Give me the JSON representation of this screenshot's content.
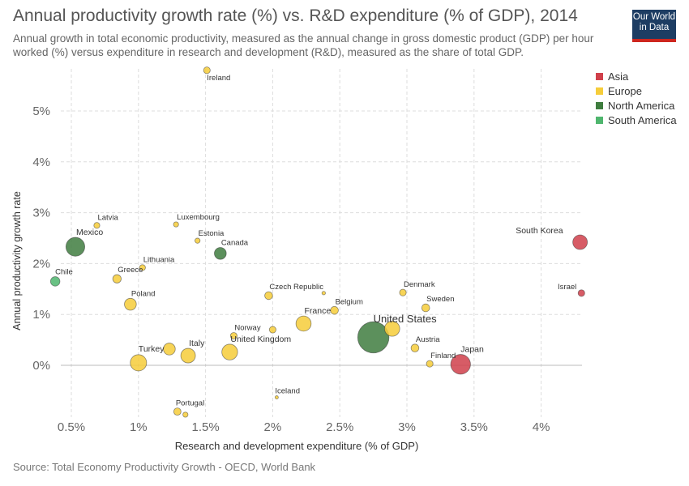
{
  "header": {
    "title": "Annual productivity growth rate (%) vs. R&D expenditure (% of GDP), 2014",
    "subtitle": "Annual growth in total economic productivity, measured as the annual change in gross domestic product (GDP) per hour worked (%) versus expenditure in research and development (R&D), measured as the share of total GDP.",
    "logo_line1": "Our World",
    "logo_line2": "in Data"
  },
  "footer": {
    "source": "Source: Total Economy Productivity Growth - OECD, World Bank"
  },
  "colors": {
    "Asia": "#d0404b",
    "Europe": "#f6cd3a",
    "North America": "#3f7d3f",
    "South America": "#4fb66e",
    "logo_bg": "#1d3d63",
    "logo_bar": "#ce261e"
  },
  "chart_data": {
    "type": "scatter",
    "title": "Annual productivity growth rate (%) vs. R&D expenditure (% of GDP), 2014",
    "xlabel": "Research and development expenditure (% of GDP)",
    "ylabel": "Annual productivity growth rate",
    "xlim": [
      0.25,
      4.3
    ],
    "ylim": [
      -1.0,
      5.85
    ],
    "x_ticks": [
      0.5,
      1,
      1.5,
      2,
      2.5,
      3,
      3.5,
      4
    ],
    "x_tick_labels": [
      "0.5%",
      "1%",
      "1.5%",
      "2%",
      "2.5%",
      "3%",
      "3.5%",
      "4%"
    ],
    "y_ticks": [
      0,
      1,
      2,
      3,
      4,
      5
    ],
    "y_tick_labels": [
      "0%",
      "1%",
      "2%",
      "3%",
      "4%",
      "5%"
    ],
    "grid": true,
    "legend_position": "top-right",
    "legend": [
      "Asia",
      "Europe",
      "North America",
      "South America"
    ],
    "points": [
      {
        "label": "Ireland",
        "x": 1.51,
        "y": 5.8,
        "region": "Europe",
        "size": 2.5,
        "show_label": true
      },
      {
        "label": "Latvia",
        "x": 0.69,
        "y": 2.75,
        "region": "Europe",
        "size": 2,
        "show_label": true
      },
      {
        "label": "Luxembourg",
        "x": 1.28,
        "y": 2.77,
        "region": "Europe",
        "size": 1.5,
        "show_label": true
      },
      {
        "label": "Estonia",
        "x": 1.44,
        "y": 2.45,
        "region": "Europe",
        "size": 1.5,
        "show_label": true
      },
      {
        "label": "Mexico",
        "x": 0.53,
        "y": 2.33,
        "region": "North America",
        "size": 20,
        "show_label": true
      },
      {
        "label": "Canada",
        "x": 1.61,
        "y": 2.2,
        "region": "North America",
        "size": 8,
        "show_label": true
      },
      {
        "label": "Lithuania",
        "x": 1.03,
        "y": 1.92,
        "region": "Europe",
        "size": 2,
        "show_label": true
      },
      {
        "label": "Greece",
        "x": 0.84,
        "y": 1.7,
        "region": "Europe",
        "size": 4,
        "show_label": true
      },
      {
        "label": "Chile",
        "x": 0.38,
        "y": 1.65,
        "region": "South America",
        "size": 5,
        "show_label": true
      },
      {
        "label": "Poland",
        "x": 0.94,
        "y": 1.2,
        "region": "Europe",
        "size": 8,
        "show_label": true
      },
      {
        "label": "Czech Republic",
        "x": 1.97,
        "y": 1.37,
        "region": "Europe",
        "size": 3.5,
        "show_label": true
      },
      {
        "label": "",
        "x": 2.38,
        "y": 1.42,
        "region": "Europe",
        "size": 0.7,
        "show_label": false
      },
      {
        "label": "Denmark",
        "x": 2.97,
        "y": 1.43,
        "region": "Europe",
        "size": 2.5,
        "show_label": true
      },
      {
        "label": "Belgium",
        "x": 2.46,
        "y": 1.08,
        "region": "Europe",
        "size": 3.5,
        "show_label": true
      },
      {
        "label": "Sweden",
        "x": 3.14,
        "y": 1.13,
        "region": "Europe",
        "size": 3.5,
        "show_label": true
      },
      {
        "label": "South Korea",
        "x": 4.29,
        "y": 2.42,
        "region": "Asia",
        "size": 12,
        "show_label": true
      },
      {
        "label": "Israel",
        "x": 4.3,
        "y": 1.42,
        "region": "Asia",
        "size": 2.5,
        "show_label": true
      },
      {
        "label": "France",
        "x": 2.23,
        "y": 0.82,
        "region": "Europe",
        "size": 13,
        "show_label": true
      },
      {
        "label": "",
        "x": 2.0,
        "y": 0.7,
        "region": "Europe",
        "size": 2.5,
        "show_label": false
      },
      {
        "label": "United States",
        "x": 2.75,
        "y": 0.55,
        "region": "North America",
        "size": 55,
        "show_label": true
      },
      {
        "label": "",
        "x": 2.89,
        "y": 0.72,
        "region": "Europe",
        "size": 13,
        "show_label": false
      },
      {
        "label": "Norway",
        "x": 1.71,
        "y": 0.58,
        "region": "Europe",
        "size": 2.5,
        "show_label": true
      },
      {
        "label": "United Kingdom",
        "x": 1.68,
        "y": 0.26,
        "region": "Europe",
        "size": 14,
        "show_label": true
      },
      {
        "label": "Austria",
        "x": 3.06,
        "y": 0.34,
        "region": "Europe",
        "size": 3.5,
        "show_label": true
      },
      {
        "label": "Finland",
        "x": 3.17,
        "y": 0.03,
        "region": "Europe",
        "size": 2.5,
        "show_label": true
      },
      {
        "label": "Japan",
        "x": 3.4,
        "y": 0.02,
        "region": "Asia",
        "size": 22,
        "show_label": true
      },
      {
        "label": "Turkey",
        "x": 1.0,
        "y": 0.05,
        "region": "Europe",
        "size": 15,
        "show_label": true
      },
      {
        "label": "",
        "x": 1.23,
        "y": 0.32,
        "region": "Europe",
        "size": 8,
        "show_label": false
      },
      {
        "label": "Italy",
        "x": 1.37,
        "y": 0.19,
        "region": "Europe",
        "size": 12,
        "show_label": true
      },
      {
        "label": "Iceland",
        "x": 2.03,
        "y": -0.63,
        "region": "Europe",
        "size": 0.5,
        "show_label": true
      },
      {
        "label": "Portugal",
        "x": 1.29,
        "y": -0.91,
        "region": "Europe",
        "size": 3,
        "show_label": true
      },
      {
        "label": "",
        "x": 1.35,
        "y": -0.97,
        "region": "Europe",
        "size": 1.5,
        "show_label": false
      }
    ]
  }
}
